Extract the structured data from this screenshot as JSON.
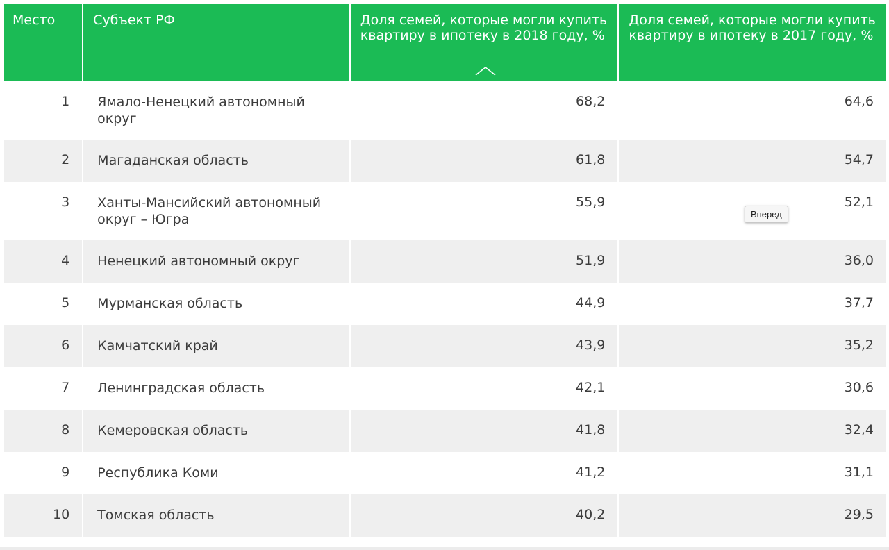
{
  "table": {
    "headers": {
      "rank": "Место",
      "subject": "Субъект РФ",
      "share2018": "Доля семей, которые могли купить квартиру в ипотеку в 2018 году, %",
      "share2017": "Доля семей, которые могли купить квартиру в ипотеку в 2017 году, %"
    },
    "sort_icon": "chevron-up-icon",
    "rows": [
      {
        "rank": "1",
        "subject": "Ямало-Ненецкий автономный округ",
        "share2018": "68,2",
        "share2017": "64,6"
      },
      {
        "rank": "2",
        "subject": "Магаданская область",
        "share2018": "61,8",
        "share2017": "54,7"
      },
      {
        "rank": "3",
        "subject": "Ханты-Мансийский автономный округ – Югра",
        "share2018": "55,9",
        "share2017": "52,1"
      },
      {
        "rank": "4",
        "subject": "Ненецкий автономный округ",
        "share2018": "51,9",
        "share2017": "36,0"
      },
      {
        "rank": "5",
        "subject": "Мурманская область",
        "share2018": "44,9",
        "share2017": "37,7"
      },
      {
        "rank": "6",
        "subject": "Камчатский край",
        "share2018": "43,9",
        "share2017": "35,2"
      },
      {
        "rank": "7",
        "subject": "Ленинградская область",
        "share2018": "42,1",
        "share2017": "30,6"
      },
      {
        "rank": "8",
        "subject": "Кемеровская область",
        "share2018": "41,8",
        "share2017": "32,4"
      },
      {
        "rank": "9",
        "subject": "Республика Коми",
        "share2018": "41,2",
        "share2017": "31,1"
      },
      {
        "rank": "10",
        "subject": "Томская область",
        "share2018": "40,2",
        "share2017": "29,5"
      }
    ]
  },
  "tooltip": {
    "text": "Вперед"
  },
  "colors": {
    "header_bg": "#1bbb55",
    "header_text": "#ffffff",
    "row_alt_bg": "#efefef",
    "body_text": "#3c3c3c"
  }
}
